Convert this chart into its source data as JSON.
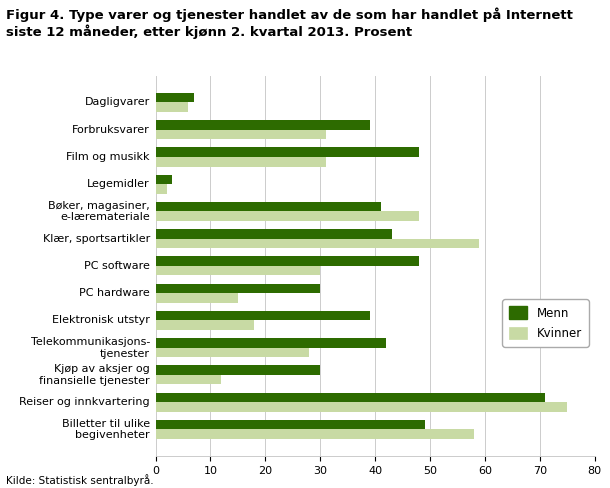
{
  "title_line1": "Figur 4. Type varer og tjenester handlet av de som har handlet på Internett",
  "title_line2": "siste 12 måneder, etter kjønn 2. kvartal 2013. Prosent",
  "categories": [
    "Dagligvarer",
    "Forbruksvarer",
    "Film og musikk",
    "Legemidler",
    "Bøker, magasiner,\ne-læremateriale",
    "Klær, sportsartikler",
    "PC software",
    "PC hardware",
    "Elektronisk utstyr",
    "Telekommunikasjons-\ntjenester",
    "Kjøp av aksjer og\nfinansielle tjenester",
    "Reiser og innkvartering",
    "Billetter til ulike\nbegivenheter"
  ],
  "menn": [
    7,
    39,
    48,
    3,
    41,
    43,
    48,
    30,
    39,
    42,
    30,
    71,
    49
  ],
  "kvinner": [
    6,
    31,
    31,
    2,
    48,
    59,
    30,
    15,
    18,
    28,
    12,
    75,
    58
  ],
  "menn_color": "#2d6b00",
  "kvinner_color": "#c8daa4",
  "xlim": [
    0,
    80
  ],
  "xticks": [
    0,
    10,
    20,
    30,
    40,
    50,
    60,
    70,
    80
  ],
  "source": "Kilde: Statistisk sentralbyrå.",
  "legend_menn": "Menn",
  "legend_kvinner": "Kvinner",
  "background_color": "#ffffff",
  "grid_color": "#cccccc",
  "title_fontsize": 9.5,
  "tick_fontsize": 8,
  "bar_height": 0.35,
  "legend_fontsize": 8.5
}
